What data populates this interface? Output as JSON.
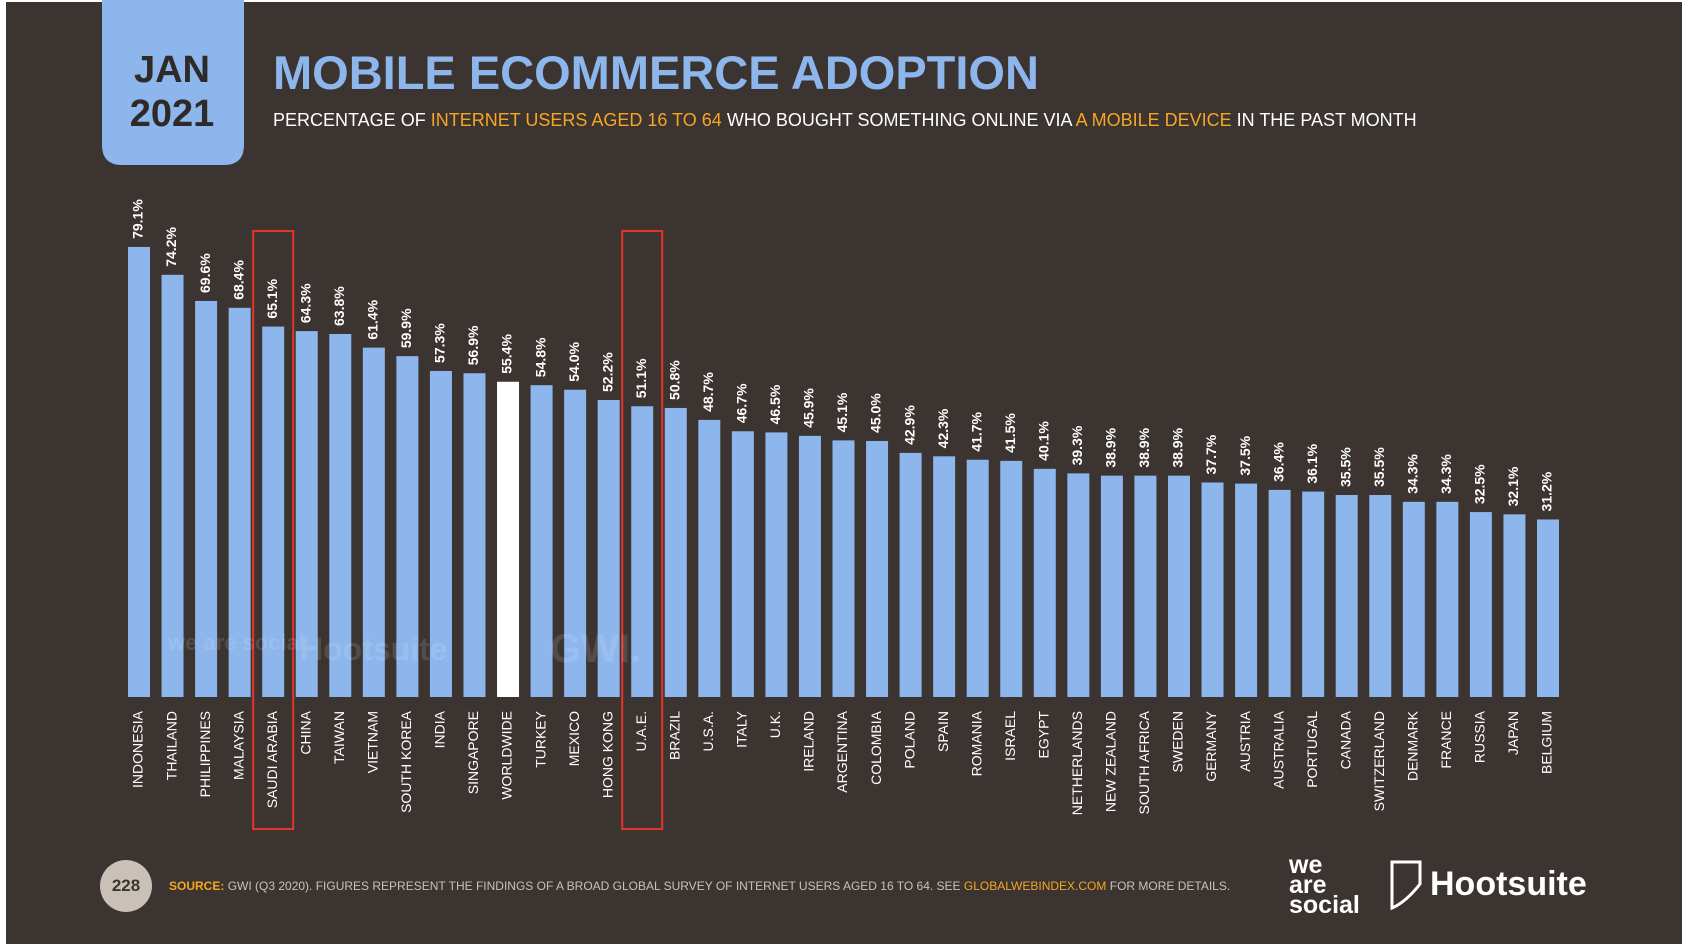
{
  "badge": {
    "month": "JAN",
    "year": "2021"
  },
  "page_number": "228",
  "source": [
    "SOURCE:",
    "GWI (Q3 2020). FIGURES REPRESENT THE FINDINGS OF A BROAD GLOBAL SURVEY OF INTERNET USERS AGED 16 TO 64. SEE",
    "GLOBALWEBINDEX.COM",
    "FOR MORE DETAILS."
  ],
  "logos": {
    "we_are_social": [
      "we",
      "are",
      "social"
    ],
    "hootsuite": "Hootsuite"
  },
  "watermarks": [
    "we are social",
    "Hootsuite",
    "GWI."
  ],
  "chart_data": {
    "type": "bar",
    "title": "MOBILE ECOMMERCE ADOPTION",
    "subtitle": [
      "PERCENTAGE OF",
      "INTERNET USERS AGED 16 TO 64",
      "WHO BOUGHT SOMETHING ONLINE VIA",
      "A MOBILE DEVICE",
      "IN THE PAST MONTH"
    ],
    "categories": [
      "INDONESIA",
      "THAILAND",
      "PHILIPPINES",
      "MALAYSIA",
      "SAUDI ARABIA",
      "CHINA",
      "TAIWAN",
      "VIETNAM",
      "SOUTH KOREA",
      "INDIA",
      "SINGAPORE",
      "WORLDWIDE",
      "TURKEY",
      "MEXICO",
      "HONG KONG",
      "U.A.E.",
      "BRAZIL",
      "U.S.A.",
      "ITALY",
      "U.K.",
      "IRELAND",
      "ARGENTINA",
      "COLOMBIA",
      "POLAND",
      "SPAIN",
      "ROMANIA",
      "ISRAEL",
      "EGYPT",
      "NETHERLANDS",
      "NEW ZEALAND",
      "SOUTH AFRICA",
      "SWEDEN",
      "GERMANY",
      "AUSTRIA",
      "AUSTRALIA",
      "PORTUGAL",
      "CANADA",
      "SWITZERLAND",
      "DENMARK",
      "FRANCE",
      "RUSSIA",
      "JAPAN",
      "BELGIUM"
    ],
    "values": [
      79.1,
      74.2,
      69.6,
      68.4,
      65.1,
      64.3,
      63.8,
      61.4,
      59.9,
      57.3,
      56.9,
      55.4,
      54.8,
      54.0,
      52.2,
      51.1,
      50.8,
      48.7,
      46.7,
      46.5,
      45.9,
      45.1,
      45.0,
      42.9,
      42.3,
      41.7,
      41.5,
      40.1,
      39.3,
      38.9,
      38.9,
      38.9,
      37.7,
      37.5,
      36.4,
      36.1,
      35.5,
      35.5,
      34.3,
      34.3,
      32.5,
      32.1,
      31.2
    ],
    "value_labels": [
      "79.1%",
      "74.2%",
      "69.6%",
      "68.4%",
      "65.1%",
      "64.3%",
      "63.8%",
      "61.4%",
      "59.9%",
      "57.3%",
      "56.9%",
      "55.4%",
      "54.8%",
      "54.0%",
      "52.2%",
      "51.1%",
      "50.8%",
      "48.7%",
      "46.7%",
      "46.5%",
      "45.9%",
      "45.1%",
      "45.0%",
      "42.9%",
      "42.3%",
      "41.7%",
      "41.5%",
      "40.1%",
      "39.3%",
      "38.9%",
      "38.9%",
      "38.9%",
      "37.7%",
      "37.5%",
      "36.4%",
      "36.1%",
      "35.5%",
      "35.5%",
      "34.3%",
      "34.3%",
      "32.5%",
      "32.1%",
      "31.2%"
    ],
    "color": "#8cb6ec",
    "reference_index": 11,
    "reference_color": "#ffffff",
    "highlight": [
      4,
      15
    ],
    "highlight_color": "#e8332a",
    "ylim": [
      0,
      100
    ]
  }
}
